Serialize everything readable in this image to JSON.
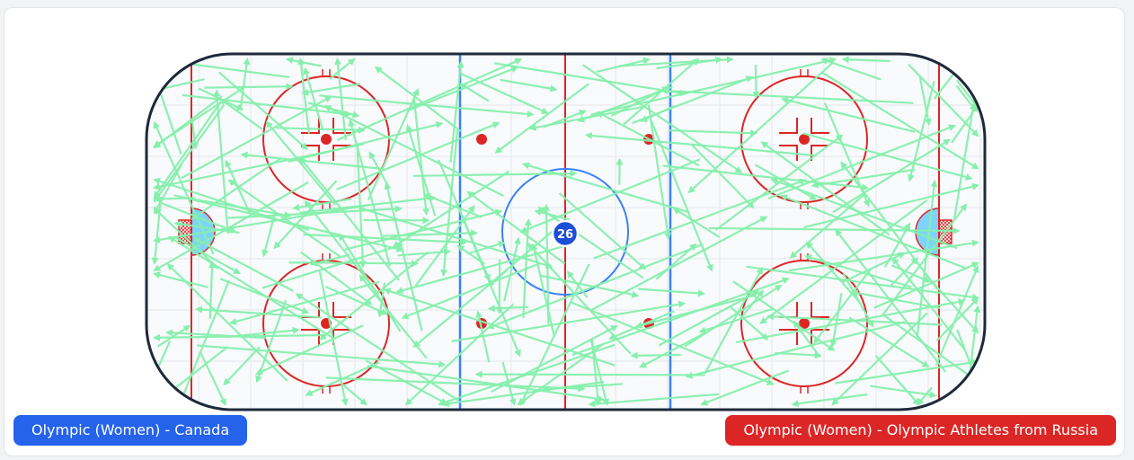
{
  "rink": {
    "puck_count_label": "26",
    "colors": {
      "board": "#1e293b",
      "ice": "#f8fafc",
      "grid": "#e5e7eb",
      "red_line": "#dc2626",
      "blue_line": "#3b82f6",
      "pass_arrow": "#86efac",
      "crease": "#7dd3fc",
      "puck_marker": "#1d4ed8"
    }
  },
  "teams": {
    "home": {
      "label": "Olympic (Women) - Canada",
      "color": "#2563eb"
    },
    "away": {
      "label": "Olympic (Women) - Olympic Athletes from Russia",
      "color": "#dc2626"
    }
  }
}
